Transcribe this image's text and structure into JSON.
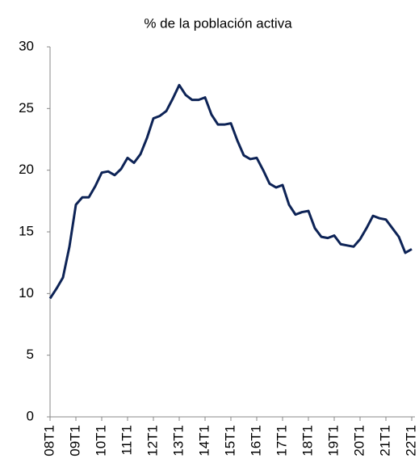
{
  "chart_data": {
    "type": "line",
    "title": "% de la población activa",
    "categories": [
      "08T1",
      null,
      null,
      null,
      "09T1",
      null,
      null,
      null,
      "10T1",
      null,
      null,
      null,
      "11T1",
      null,
      null,
      null,
      "12T1",
      null,
      null,
      null,
      "13T1",
      null,
      null,
      null,
      "14T1",
      null,
      null,
      null,
      "15T1",
      null,
      null,
      null,
      "16T1",
      null,
      null,
      null,
      "17T1",
      null,
      null,
      null,
      "18T1",
      null,
      null,
      null,
      "19T1",
      null,
      null,
      null,
      "20T1",
      null,
      null,
      null,
      "21T1",
      null,
      null,
      null,
      "22T1"
    ],
    "values": [
      9.6,
      10.4,
      11.3,
      13.8,
      17.2,
      17.8,
      17.8,
      18.7,
      19.8,
      19.9,
      19.6,
      20.1,
      21.0,
      20.6,
      21.3,
      22.6,
      24.2,
      24.4,
      24.8,
      25.8,
      26.9,
      26.1,
      25.7,
      25.7,
      25.9,
      24.5,
      23.7,
      23.7,
      23.8,
      22.4,
      21.2,
      20.9,
      21.0,
      20.0,
      18.9,
      18.6,
      18.8,
      17.2,
      16.4,
      16.6,
      16.7,
      15.3,
      14.6,
      14.5,
      14.7,
      14.0,
      13.9,
      13.8,
      14.4,
      15.3,
      16.3,
      16.1,
      16.0,
      15.3,
      14.6,
      13.3,
      13.6
    ],
    "color": "#0d2356",
    "ylim": [
      0,
      30
    ],
    "yticks": [
      0,
      5,
      10,
      15,
      20,
      25,
      30
    ]
  }
}
